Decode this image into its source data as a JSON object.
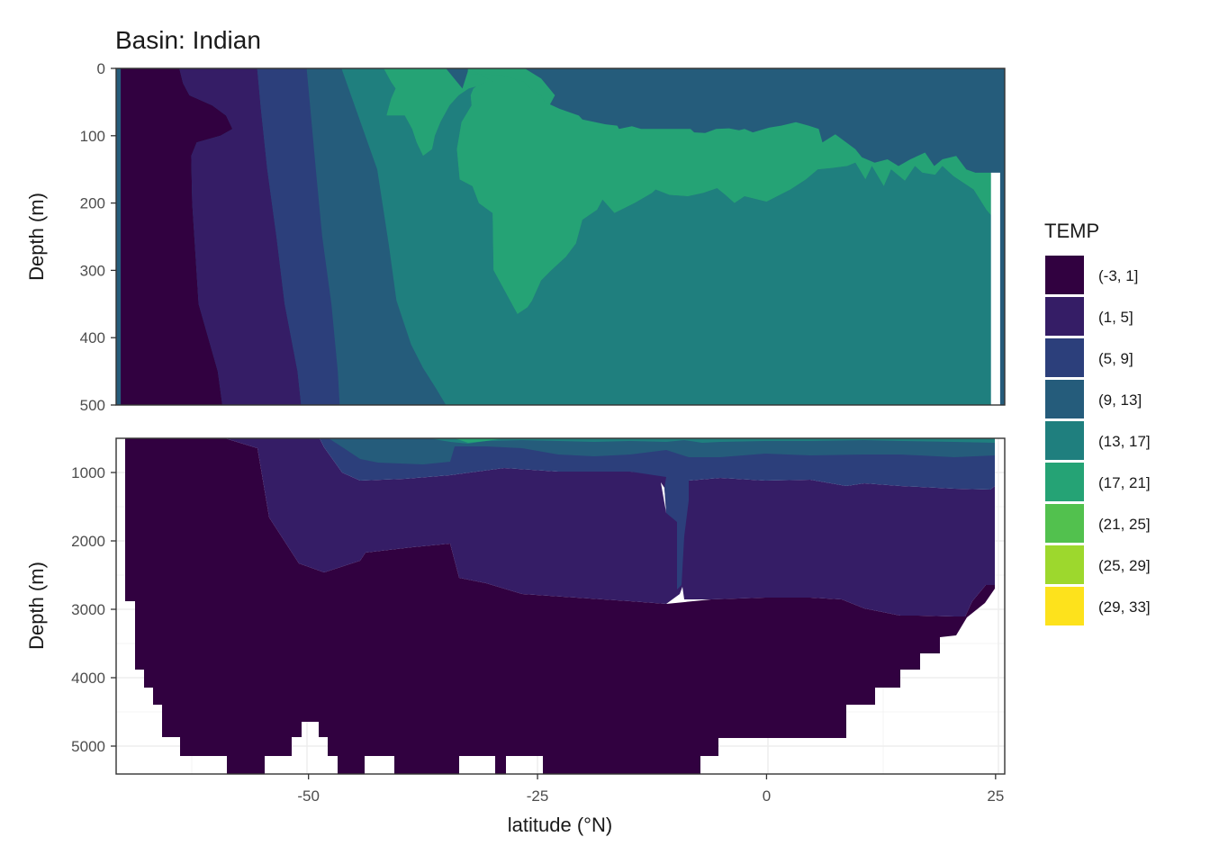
{
  "chart_data": {
    "type": "area",
    "title": "Basin: Indian",
    "xlabel": "latitude (°N)",
    "ylabel": "Depth (m)",
    "legend_title": "TEMP",
    "legend_position": "right",
    "grid": true,
    "xlim": [
      -71,
      26
    ],
    "x_ticks": [
      -50,
      -25,
      0,
      25
    ],
    "x_tick_labels": [
      "-50",
      "-25",
      "0",
      "25"
    ],
    "classes": [
      {
        "label": "(-3, 1]",
        "color": "#310140"
      },
      {
        "label": "(1, 5]",
        "color": "#351D66"
      },
      {
        "label": "(5, 9]",
        "color": "#2C3F7B"
      },
      {
        "label": "(9, 13]",
        "color": "#255C7B"
      },
      {
        "label": "(13, 17]",
        "color": "#1F7F7E"
      },
      {
        "label": "(17, 21]",
        "color": "#25A375"
      },
      {
        "label": "(21, 25]",
        "color": "#52C14E"
      },
      {
        "label": "(25, 29]",
        "color": "#9DD82D"
      },
      {
        "label": "(29, 33]",
        "color": "#FDE21C"
      }
    ],
    "panels": [
      {
        "name": "upper",
        "ylim": [
          0,
          500
        ],
        "y_ticks": [
          0,
          100,
          200,
          300,
          400,
          500
        ],
        "y_tick_labels": [
          "0",
          "100",
          "200",
          "300",
          "400",
          "500"
        ],
        "background_class": 3,
        "no_data": [
          {
            "x": [
              24.5,
              24.5,
              25.5,
              25.5
            ],
            "y": [
              155,
              500,
              500,
              155
            ]
          }
        ],
        "regions": [
          {
            "class": 0,
            "x": [
              -70.5,
              -70.5,
              -59.4,
              -59.9,
              -62,
              -62.7,
              -62.8,
              -62.2,
              -59.6,
              -58.3,
              -59,
              -60.5,
              -63,
              -63.7,
              -64.1
            ],
            "y": [
              0,
              500,
              500,
              450,
              350,
              200,
              130,
              110,
              100,
              90,
              70,
              55,
              40,
              22,
              0
            ]
          },
          {
            "class": 1,
            "x": [
              -64.1,
              -63.7,
              -63,
              -60.5,
              -59,
              -58.3,
              -59.6,
              -62.2,
              -62.8,
              -62.7,
              -62,
              -59.9,
              -59.4,
              -50.8,
              -51.2,
              -52.6,
              -53.5,
              -54.5,
              -55.2,
              -55.6
            ],
            "y": [
              0,
              22,
              40,
              55,
              70,
              90,
              100,
              110,
              130,
              200,
              350,
              450,
              500,
              500,
              450,
              350,
              250,
              150,
              60,
              0
            ]
          },
          {
            "class": 2,
            "x": [
              -55.6,
              -55.2,
              -54.5,
              -53.5,
              -52.6,
              -51.2,
              -50.8,
              -46.6,
              -46.8,
              -47.5,
              -48.5,
              -49.2,
              -49.8,
              -50.2
            ],
            "y": [
              0,
              60,
              150,
              250,
              350,
              450,
              500,
              500,
              450,
              350,
              250,
              150,
              60,
              0
            ]
          },
          {
            "class": 4,
            "x": [
              -46.8,
              -44,
              -41.8,
              -41,
              -40.5,
              -41,
              -41.5,
              -39.5,
              -38.7,
              -38.2,
              -37.5,
              -36.5,
              -36.2,
              -35.6,
              -34.6,
              -33.6,
              -32.5,
              -29.8,
              -30.5,
              -31.5,
              -32,
              -32.3,
              -32.2,
              -33.3,
              -33.8,
              -33.5,
              -32.1,
              -31.4,
              -29.9,
              -29.8,
              -27.2,
              -26.1,
              -25.6,
              -24.6,
              -23.5,
              -21.9,
              -20.8,
              -20.1,
              -18.5,
              -17.9,
              -16.6,
              -14.4,
              -12.5,
              -12.1,
              -10.6,
              -8.6,
              -6.9,
              -5.4,
              -4.5,
              -3.5,
              -2.4,
              0,
              2.6,
              4.3,
              5.6,
              7.1,
              8.8,
              9.7,
              10.8,
              11.5,
              12.8,
              13.6,
              15.1,
              16.2,
              17,
              18.4,
              19.2,
              20.4,
              22.6,
              24,
              24.5,
              24.5,
              24.5,
              -33.5,
              -35,
              -36.1,
              -37.5,
              -38.8,
              -40.4,
              -41.2,
              -42.5,
              -46.4
            ],
            "y": [
              0,
              0,
              0,
              20,
              30,
              45,
              70,
              70,
              90,
              110,
              130,
              120,
              100,
              80,
              55,
              40,
              30,
              20,
              20,
              25,
              30,
              40,
              55,
              80,
              120,
              165,
              175,
              200,
              215,
              300,
              365,
              355,
              345,
              315,
              300,
              280,
              260,
              225,
              210,
              195,
              215,
              200,
              185,
              180,
              188,
              190,
              185,
              178,
              188,
              200,
              190,
              198,
              180,
              165,
              150,
              148,
              145,
              140,
              165,
              145,
              175,
              150,
              167,
              145,
              155,
              158,
              145,
              160,
              180,
              210,
              218,
              220,
              500,
              500,
              500,
              475,
              445,
              410,
              345,
              265,
              150,
              0
            ]
          },
          {
            "class": 5,
            "x": [
              -41.8,
              -38.5,
              -35,
              -33.2,
              -32.5,
              -32.2,
              -32.3,
              -32,
              -31.5,
              -30.5,
              -29.8,
              -27.8,
              -26.4,
              -25.8,
              -24.6,
              -23.1,
              -23.9,
              -24.7,
              -25.5,
              -25.8,
              -27.8,
              -27.2,
              -29.8,
              -29.9,
              -31.4,
              -32.1,
              -33.5,
              -33.8,
              -33.3,
              -32.2,
              -32.3,
              -32,
              -31.5,
              -30.5,
              -29.8,
              -32.5,
              -33.6,
              -34.6,
              -35.6,
              -36.2,
              -36.5,
              -37.5,
              -38.2,
              -38.7,
              -39.5,
              -41.5,
              -41,
              -40.5,
              -41
            ],
            "y": [
              0,
              0,
              0,
              30,
              0,
              0,
              0,
              0,
              0,
              0,
              0,
              0,
              0,
              5,
              15,
              40,
              60,
              80,
              100,
              120,
              160,
              200,
              300,
              215,
              200,
              175,
              165,
              120,
              80,
              55,
              40,
              30,
              25,
              20,
              20,
              30,
              40,
              55,
              80,
              100,
              120,
              130,
              110,
              90,
              70,
              70,
              45,
              30,
              20
            ]
          },
          {
            "class": 5,
            "x": [
              -32.5,
              -29.8,
              -30.5,
              -31.5,
              -32,
              -32.3,
              -32.2,
              -33.3,
              -33.8,
              -33.5,
              -32.1,
              -31.4,
              -29.9,
              -29.8,
              -27.2,
              -26.1,
              -25.6,
              -24.6,
              -23.5,
              -21.9,
              -20.8,
              -20.1,
              -18.5,
              -17.9,
              -16.6,
              -14.4,
              -12.5,
              -12.1,
              -10.6,
              -8.6,
              -6.9,
              -5.4,
              -4.5,
              -3.5,
              -2.4,
              0,
              2.6,
              4.3,
              5.6,
              7.1,
              8.8,
              9.7,
              10.8,
              11.5,
              12.8,
              13.6,
              15.1,
              16.2,
              17,
              18.4,
              19.2,
              20.4,
              22.6,
              24,
              24.5,
              24.5,
              24.5,
              22.8,
              21.8,
              20.7,
              19.2,
              18.3,
              17.3,
              15.7,
              14.4,
              13.2,
              11.8,
              10.4,
              9.7,
              8.7,
              7.5,
              6.1,
              5.7,
              4.6,
              3.2,
              1.6,
              0.3,
              -1.5,
              -2.4,
              -3,
              -4.1,
              -5.5,
              -6.7,
              -7.9,
              -8.3,
              -9.6,
              -10.9,
              -12.2,
              -13.7,
              -14.7,
              -16.1,
              -16.3,
              -17.6,
              -18.7,
              -20.1,
              -20.5,
              -22.6,
              -24.2,
              -24.6,
              -25.7,
              -26.5,
              -28.9,
              -32.6,
              -32.6
            ],
            "y": [
              0,
              20,
              20,
              25,
              30,
              40,
              55,
              80,
              120,
              165,
              175,
              200,
              215,
              300,
              365,
              355,
              345,
              315,
              300,
              280,
              260,
              225,
              210,
              195,
              215,
              200,
              185,
              180,
              188,
              190,
              185,
              178,
              188,
              200,
              190,
              198,
              180,
              165,
              150,
              148,
              145,
              140,
              165,
              145,
              175,
              150,
              167,
              145,
              155,
              158,
              145,
              160,
              180,
              210,
              218,
              220,
              155,
              155,
              150,
              130,
              135,
              145,
              125,
              135,
              145,
              135,
              140,
              132,
              120,
              110,
              98,
              110,
              90,
              85,
              80,
              85,
              88,
              95,
              90,
              92,
              89,
              90,
              96,
              95,
              90,
              90,
              90,
              90,
              90,
              86,
              90,
              85,
              83,
              80,
              76,
              70,
              60,
              50,
              40,
              30,
              20,
              10,
              8,
              0
            ]
          }
        ]
      },
      {
        "name": "lower",
        "ylim": [
          500,
          5400
        ],
        "y_ticks": [
          1000,
          2000,
          3000,
          4000,
          5000
        ],
        "y_tick_labels": [
          "1000",
          "2000",
          "3000",
          "4000",
          "5000"
        ],
        "background_class": 0,
        "no_data": [],
        "regions": []
      }
    ]
  }
}
